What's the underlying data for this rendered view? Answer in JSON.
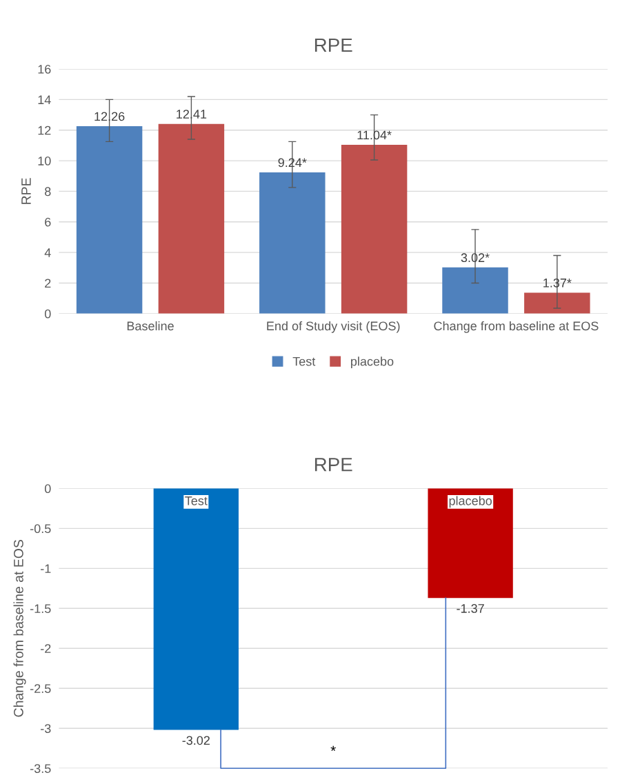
{
  "chart_data": [
    {
      "type": "bar",
      "title": "RPE",
      "ylabel": "RPE",
      "categories": [
        "Baseline",
        "End of Study visit (EOS)",
        "Change from baseline at EOS"
      ],
      "ylim": [
        0,
        16
      ],
      "yticks": [
        0,
        2,
        4,
        6,
        8,
        10,
        12,
        14,
        16
      ],
      "grid": "y",
      "legend": "bottom",
      "series": [
        {
          "name": "Test",
          "color": "#4f81bd",
          "values": [
            12.26,
            9.24,
            3.02
          ],
          "value_labels": [
            "12.26",
            "9.24*",
            "3.02*"
          ],
          "errors": [
            [
              11.25,
              14.0
            ],
            [
              8.25,
              11.25
            ],
            [
              2.0,
              5.5
            ]
          ]
        },
        {
          "name": "placebo",
          "color": "#c0504d",
          "values": [
            12.41,
            11.04,
            1.37
          ],
          "value_labels": [
            "12.41",
            "11.04*",
            "1.37*"
          ],
          "errors": [
            [
              11.4,
              14.2
            ],
            [
              10.05,
              13.0
            ],
            [
              0.35,
              3.8
            ]
          ]
        }
      ]
    },
    {
      "type": "bar",
      "title": "RPE",
      "ylabel": "Change from baseline at EOS",
      "categories": [
        "Test",
        "placebo"
      ],
      "values": [
        -3.02,
        -1.37
      ],
      "colors": [
        "#0070c0",
        "#c00000"
      ],
      "data_labels": true,
      "ylim": [
        -3.5,
        0
      ],
      "yticks": [
        0,
        -0.5,
        -1,
        -1.5,
        -2,
        -2.5,
        -3,
        -3.5
      ],
      "grid": "y",
      "tick_labels": "y",
      "annotations": [
        "*"
      ]
    }
  ]
}
